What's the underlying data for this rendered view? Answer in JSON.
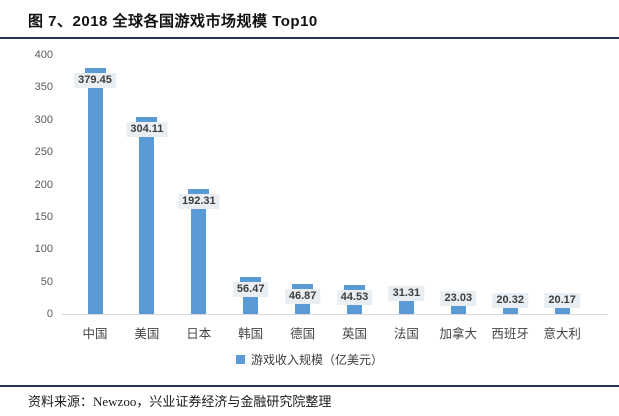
{
  "page": {
    "title": "图 7、2018 全球各国游戏市场规模 Top10",
    "source_note": "资料来源：Newzoo，兴业证券经济与金融研究院整理"
  },
  "colors": {
    "bar": "#5B9BD5",
    "value_label_bg": "#E9EEF3",
    "value_label_text": "#3D3D3D",
    "axis_text": "#595959",
    "rule": "#2B3156",
    "axis_line": "#D9D9D9"
  },
  "chart_data": {
    "type": "bar",
    "title": "2018 全球各国游戏市场规模 Top10",
    "categories": [
      "中国",
      "美国",
      "日本",
      "韩国",
      "德国",
      "英国",
      "法国",
      "加拿大",
      "西班牙",
      "意大利"
    ],
    "values": [
      379.45,
      304.11,
      192.31,
      56.47,
      46.87,
      44.53,
      31.31,
      23.03,
      20.32,
      20.17
    ],
    "value_labels": [
      "379.45",
      "304.11",
      "192.31",
      "56.47",
      "46.87",
      "44.53",
      "31.31",
      "23.03",
      "20.32",
      "20.17"
    ],
    "legend": [
      "游戏收入规模（亿美元）"
    ],
    "legend_position": "bottom",
    "xlabel": "",
    "ylabel": "",
    "ylim": [
      0,
      400
    ],
    "yticks": [
      0,
      50,
      100,
      150,
      200,
      250,
      300,
      350,
      400
    ],
    "grid": false
  }
}
